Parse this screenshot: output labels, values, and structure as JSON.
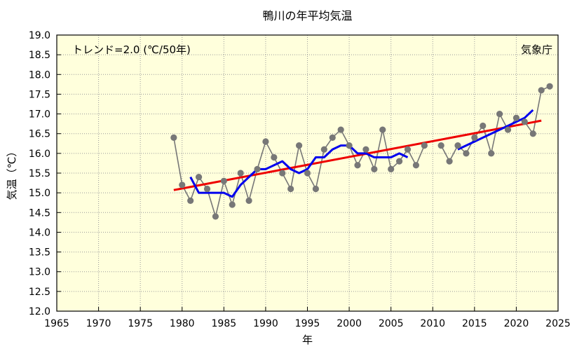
{
  "chart_data": {
    "type": "line",
    "title": "鴨川の年平均気温",
    "xlabel": "年",
    "ylabel": "気温（℃）",
    "xlim": [
      1965,
      2025
    ],
    "ylim": [
      12.0,
      19.0
    ],
    "x_ticks": [
      "1965",
      "1970",
      "1975",
      "1980",
      "1985",
      "1990",
      "1995",
      "2000",
      "2005",
      "2010",
      "2015",
      "2020",
      "2025"
    ],
    "y_ticks": [
      "12.0",
      "12.5",
      "13.0",
      "13.5",
      "14.0",
      "14.5",
      "15.0",
      "15.5",
      "16.0",
      "16.5",
      "17.0",
      "17.5",
      "18.0",
      "18.5",
      "19.0"
    ],
    "grid": true,
    "annotations": {
      "trend": "トレンド=2.0 (℃/50年)",
      "source": "気象庁"
    },
    "series": [
      {
        "type": "annual",
        "color": "#777777",
        "segments": [
          [
            [
              1979,
              16.4
            ],
            [
              1980,
              15.2
            ],
            [
              1981,
              14.8
            ],
            [
              1982,
              15.4
            ],
            [
              1983,
              15.1
            ],
            [
              1984,
              14.4
            ],
            [
              1985,
              15.3
            ],
            [
              1986,
              14.7
            ],
            [
              1987,
              15.5
            ],
            [
              1988,
              14.8
            ],
            [
              1989,
              15.6
            ],
            [
              1990,
              16.3
            ],
            [
              1991,
              15.9
            ],
            [
              1992,
              15.5
            ],
            [
              1993,
              15.1
            ],
            [
              1994,
              16.2
            ],
            [
              1995,
              15.5
            ],
            [
              1996,
              15.1
            ],
            [
              1997,
              16.1
            ],
            [
              1998,
              16.4
            ],
            [
              1999,
              16.6
            ],
            [
              2000,
              16.2
            ],
            [
              2001,
              15.7
            ],
            [
              2002,
              16.1
            ],
            [
              2003,
              15.6
            ],
            [
              2004,
              16.6
            ],
            [
              2005,
              15.6
            ],
            [
              2006,
              15.8
            ],
            [
              2007,
              16.1
            ],
            [
              2008,
              15.7
            ],
            [
              2009,
              16.2
            ]
          ],
          [
            [
              2011,
              16.2
            ],
            [
              2012,
              15.8
            ],
            [
              2013,
              16.2
            ],
            [
              2014,
              16.0
            ],
            [
              2015,
              16.4
            ],
            [
              2016,
              16.7
            ],
            [
              2017,
              16.0
            ],
            [
              2018,
              17.0
            ],
            [
              2019,
              16.6
            ],
            [
              2020,
              16.9
            ],
            [
              2021,
              16.8
            ],
            [
              2022,
              16.5
            ],
            [
              2023,
              17.6
            ],
            [
              2024,
              17.7
            ]
          ]
        ]
      },
      {
        "type": "5-year moving average",
        "color": "#0000ee",
        "segments": [
          [
            [
              1981,
              15.4
            ],
            [
              1982,
              15.0
            ],
            [
              1983,
              15.0
            ],
            [
              1984,
              15.0
            ],
            [
              1985,
              15.0
            ],
            [
              1986,
              14.9
            ],
            [
              1987,
              15.2
            ],
            [
              1988,
              15.4
            ],
            [
              1989,
              15.6
            ],
            [
              1990,
              15.6
            ],
            [
              1991,
              15.7
            ],
            [
              1992,
              15.8
            ],
            [
              1993,
              15.6
            ],
            [
              1994,
              15.5
            ],
            [
              1995,
              15.6
            ],
            [
              1996,
              15.9
            ],
            [
              1997,
              15.9
            ],
            [
              1998,
              16.1
            ],
            [
              1999,
              16.2
            ],
            [
              2000,
              16.2
            ],
            [
              2001,
              16.0
            ],
            [
              2002,
              16.0
            ],
            [
              2003,
              15.9
            ],
            [
              2004,
              15.9
            ],
            [
              2005,
              15.9
            ],
            [
              2006,
              16.0
            ],
            [
              2007,
              15.9
            ]
          ],
          [
            [
              2013,
              16.1
            ],
            [
              2014,
              16.2
            ],
            [
              2015,
              16.3
            ],
            [
              2016,
              16.4
            ],
            [
              2017,
              16.5
            ],
            [
              2018,
              16.6
            ],
            [
              2019,
              16.7
            ],
            [
              2020,
              16.8
            ],
            [
              2021,
              16.9
            ],
            [
              2022,
              17.1
            ]
          ]
        ]
      },
      {
        "type": "trend",
        "color": "#ee0000",
        "points": [
          [
            1979,
            15.07
          ],
          [
            2023,
            16.83
          ]
        ]
      }
    ]
  }
}
